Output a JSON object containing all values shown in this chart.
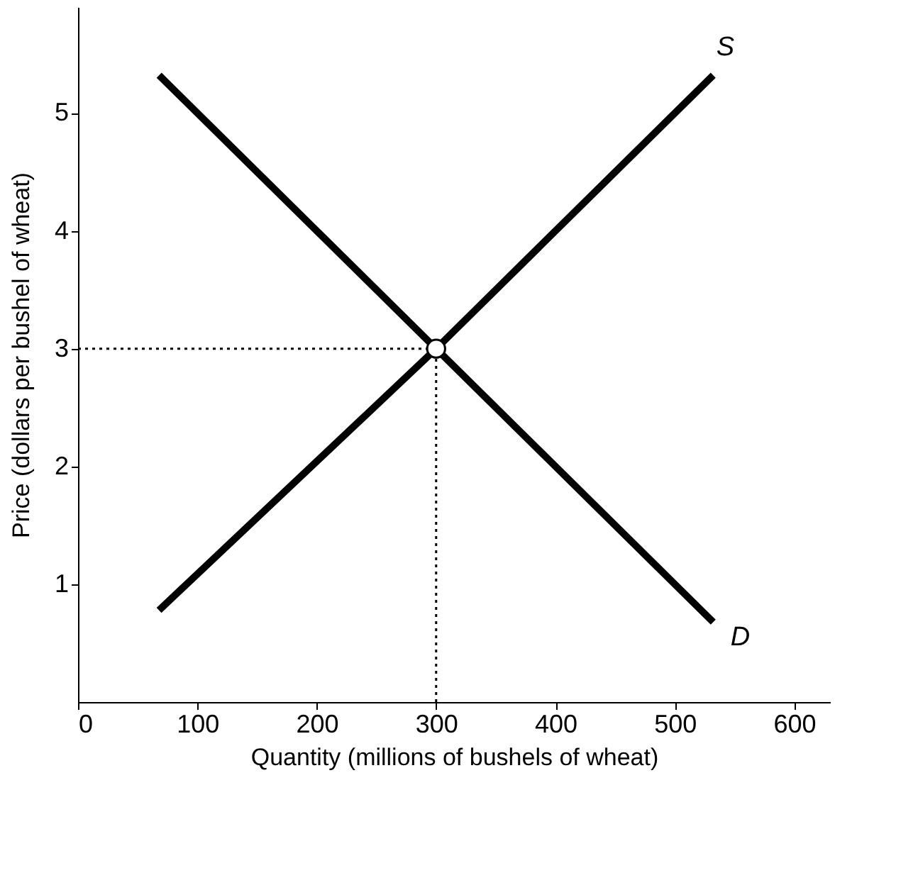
{
  "chart_data": {
    "type": "line",
    "xlabel": "Quantity (millions of bushels of wheat)",
    "ylabel": "Price (dollars per bushel of wheat)",
    "xlim": [
      0,
      630
    ],
    "ylim": [
      0,
      5.9
    ],
    "xticks": [
      0,
      100,
      200,
      300,
      400,
      500,
      600
    ],
    "yticks": [
      1,
      2,
      3,
      4,
      5
    ],
    "grid": false,
    "series": [
      {
        "name": "S",
        "color": "#000000",
        "x": [
          70,
          300,
          530
        ],
        "values": [
          0.8,
          3,
          5.3
        ],
        "line_style": "solid",
        "marker": "none"
      },
      {
        "name": "D",
        "color": "#000000",
        "x": [
          70,
          300,
          530
        ],
        "values": [
          5.3,
          3,
          0.7
        ],
        "line_style": "solid",
        "marker": "none"
      },
      {
        "color": "#000000",
        "x": [
          0,
          300
        ],
        "values": [
          3,
          3
        ],
        "line_style": "dotted",
        "marker": "none"
      },
      {
        "color": "#000000",
        "x": [
          300,
          300
        ],
        "values": [
          0,
          3
        ],
        "line_style": "dotted",
        "marker": "none"
      },
      {
        "type": "scatter",
        "color": "#000000",
        "x": [
          300
        ],
        "values": [
          3
        ],
        "marker": "circle"
      }
    ]
  }
}
